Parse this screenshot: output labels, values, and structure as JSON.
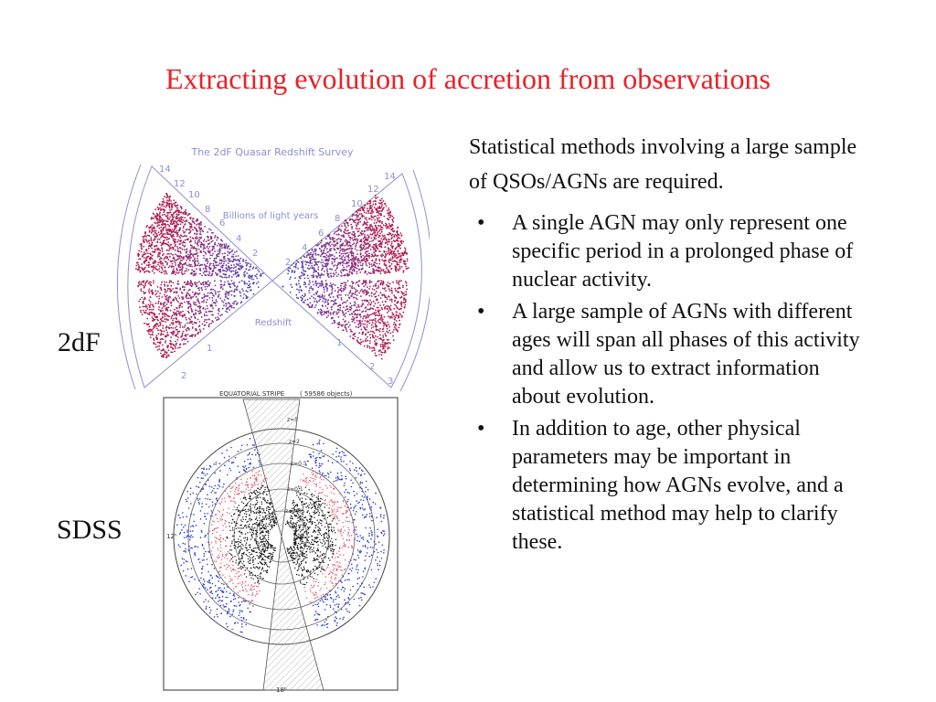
{
  "slide": {
    "title": "Extracting evolution of accretion from observations",
    "intro": "Statistical methods involving a large sample of QSOs/AGNs are required.",
    "bullets": [
      "A single AGN may only represent one specific period in a prolonged phase of nuclear activity.",
      "A large sample of AGNs with different ages will span all phases of this activity and allow us to extract information about evolution.",
      "In addition to age, other physical parameters may be important in determining how AGNs evolve, and a statistical method may help to clarify these."
    ],
    "bullet_glyph": "•"
  },
  "figures": {
    "twodf": {
      "side_label": "2dF",
      "title": "The 2dF Quasar Redshift Survey",
      "distance_label": "Billions of light years",
      "redshift_label": "Redshift",
      "ticks_left": [
        "14",
        "12",
        "10",
        "8",
        "6",
        "4",
        "2"
      ],
      "ticks_right": [
        "2",
        "4",
        "6",
        "8",
        "10",
        "12",
        "14"
      ],
      "z_ticks_left": [
        "2",
        "1"
      ],
      "z_ticks_right": [
        "1",
        "2",
        "3"
      ]
    },
    "sdss": {
      "side_label": "SDSS",
      "header": "EQUATORIAL STRIPE",
      "count": "( 59586 objects)",
      "ring_labels": [
        "z=5",
        "z=2",
        "z=0.5",
        "z=0.1",
        "z=0.05"
      ],
      "ra_left": "12ʰ",
      "ra_bottom": "18ʰ"
    }
  },
  "colors": {
    "title": "#ea2127",
    "inner_points": "#4a48c8",
    "outer_points": "#b01a4e",
    "outline": "#8a8fd6",
    "sdss_blue": "#2b3bd6",
    "sdss_red": "#e05060"
  }
}
